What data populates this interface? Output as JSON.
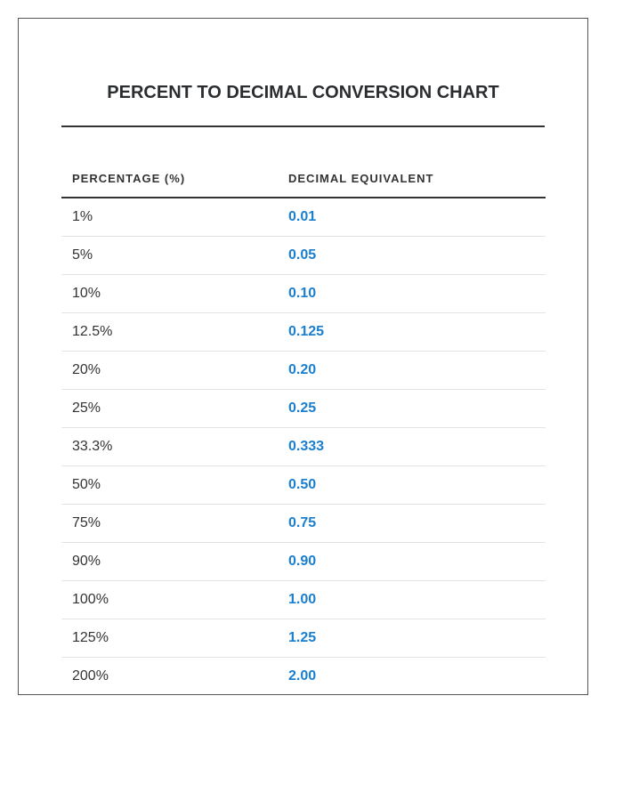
{
  "title": "PERCENT TO DECIMAL CONVERSION CHART",
  "table": {
    "header": [
      "PERCENTAGE (%)",
      "DECIMAL EQUIVALENT"
    ],
    "rows": [
      [
        "1%",
        "0.01"
      ],
      [
        "5%",
        "0.05"
      ],
      [
        "10%",
        "0.10"
      ],
      [
        "12.5%",
        "0.125"
      ],
      [
        "20%",
        "0.20"
      ],
      [
        "25%",
        "0.25"
      ],
      [
        "33.3%",
        "0.333"
      ],
      [
        "50%",
        "0.50"
      ],
      [
        "75%",
        "0.75"
      ],
      [
        "90%",
        "0.90"
      ],
      [
        "100%",
        "1.00"
      ],
      [
        "125%",
        "1.25"
      ],
      [
        "200%",
        "2.00"
      ]
    ]
  }
}
